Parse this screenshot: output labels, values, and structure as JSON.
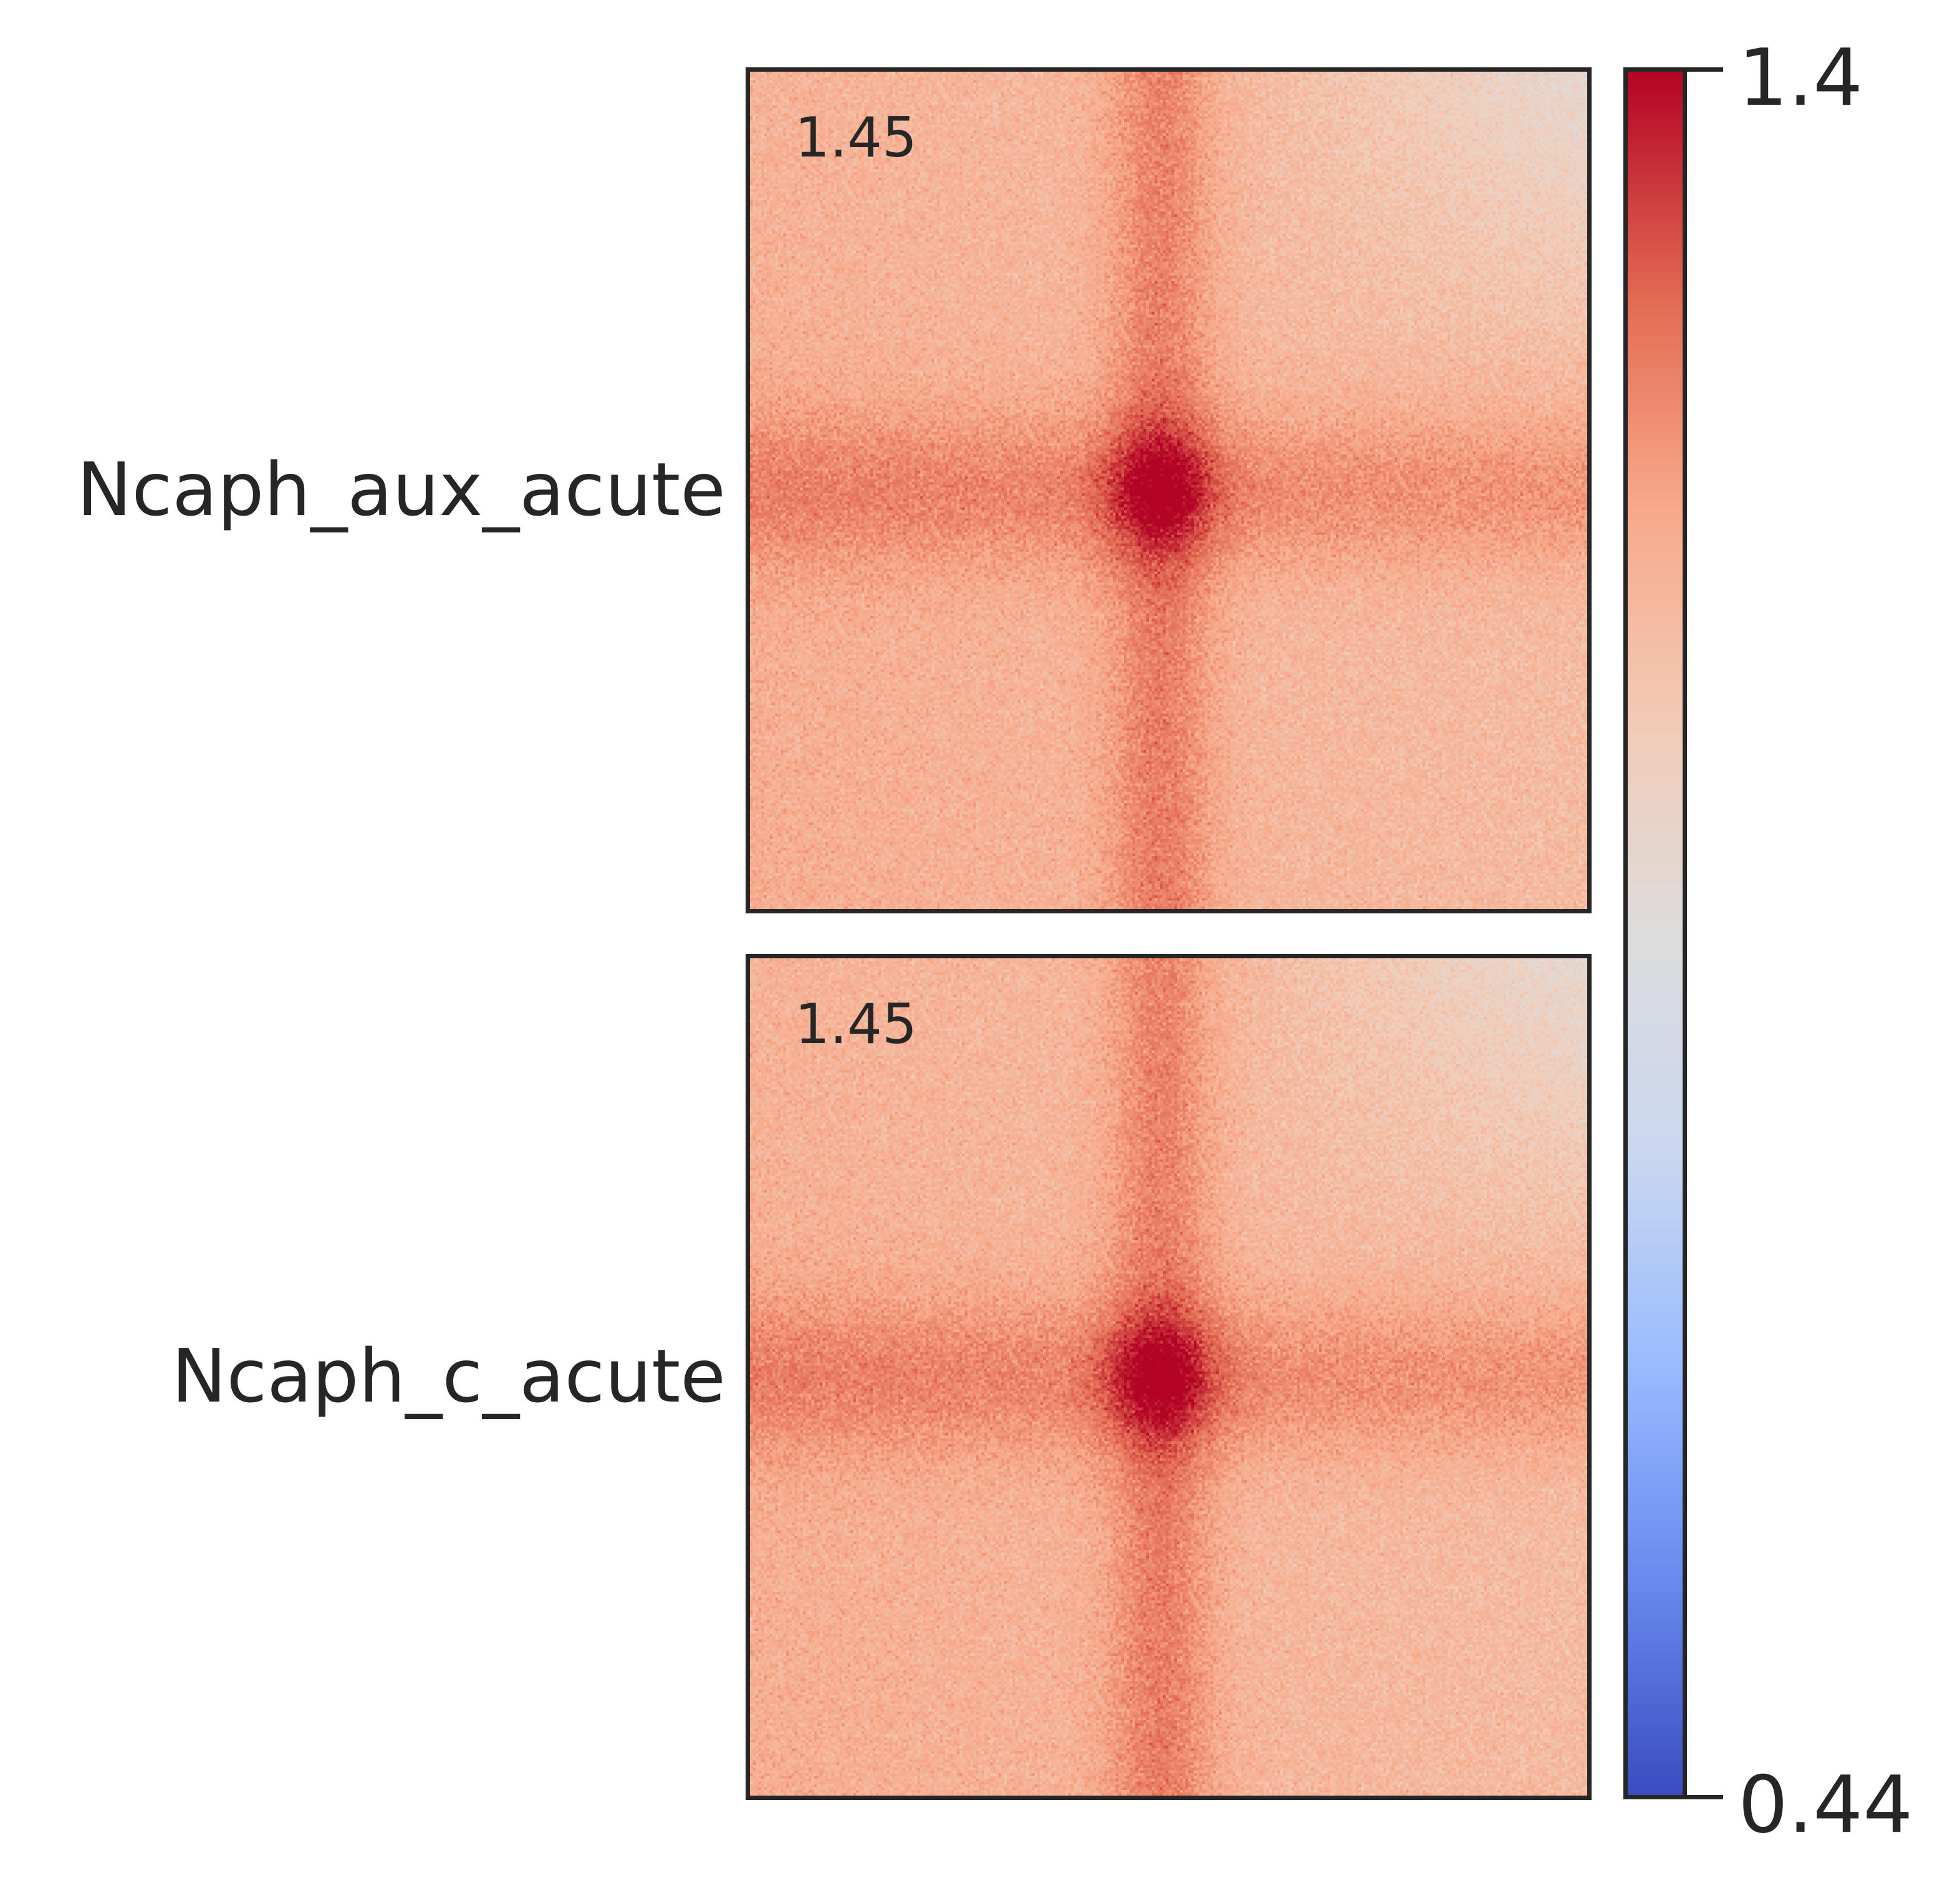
{
  "chart_data": {
    "type": "heatmap",
    "title": "",
    "panels": [
      {
        "row_label": "Ncaph_aux_acute",
        "corner_score": "1.45"
      },
      {
        "row_label": "Ncaph_c_acute",
        "corner_score": "1.45"
      }
    ],
    "colorbar": {
      "colormap": "coolwarm",
      "max_label": "1.4",
      "min_label": "0.44",
      "vmin": 0.44,
      "vmax": 1.4
    },
    "pattern": "cross-shaped enrichment centered on the pile-up, strongest at the center, fading toward the top-right corner"
  }
}
